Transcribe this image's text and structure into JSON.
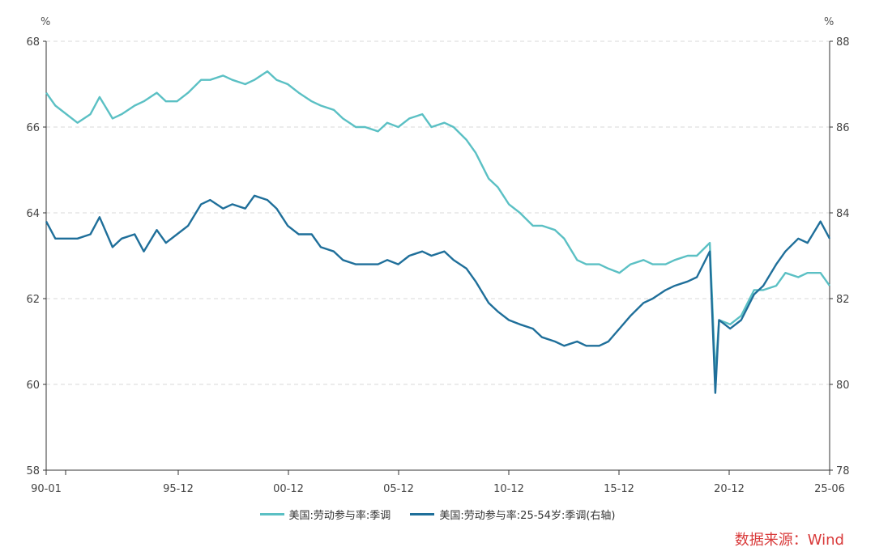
{
  "chart_data": {
    "type": "line",
    "left_axis": {
      "unit": "%",
      "ylim": [
        58,
        68
      ],
      "ticks": [
        "58",
        "60",
        "62",
        "64",
        "66",
        "68"
      ]
    },
    "right_axis": {
      "unit": "%",
      "ylim": [
        78,
        88
      ],
      "ticks": [
        "78",
        "80",
        "82",
        "84",
        "86",
        "88"
      ]
    },
    "x_ticks": [
      "90-01",
      "95-12",
      "00-12",
      "05-12",
      "10-12",
      "15-12",
      "20-12",
      "25-06"
    ],
    "grid": true,
    "legend_position": "bottom",
    "series": [
      {
        "name": "美国:劳动参与率:季调",
        "axis": "left",
        "color": "#5bc0c4",
        "x": [
          "1990-01",
          "1990-06",
          "1991-06",
          "1992-01",
          "1992-06",
          "1993-01",
          "1993-06",
          "1994-01",
          "1994-06",
          "1995-01",
          "1995-06",
          "1995-12",
          "1996-06",
          "1997-01",
          "1997-06",
          "1998-01",
          "1998-06",
          "1999-01",
          "1999-06",
          "2000-01",
          "2000-06",
          "2000-12",
          "2001-06",
          "2002-01",
          "2002-06",
          "2003-01",
          "2003-06",
          "2004-01",
          "2004-06",
          "2005-01",
          "2005-06",
          "2005-12",
          "2006-06",
          "2007-01",
          "2007-06",
          "2008-01",
          "2008-06",
          "2009-01",
          "2009-06",
          "2010-01",
          "2010-06",
          "2010-12",
          "2011-06",
          "2012-01",
          "2012-06",
          "2013-01",
          "2013-06",
          "2014-01",
          "2014-06",
          "2015-01",
          "2015-06",
          "2015-12",
          "2016-06",
          "2017-01",
          "2017-06",
          "2018-01",
          "2018-06",
          "2019-01",
          "2019-06",
          "2020-01",
          "2020-04",
          "2020-06",
          "2020-12",
          "2021-06",
          "2022-01",
          "2022-06",
          "2023-01",
          "2023-06",
          "2024-01",
          "2024-06",
          "2025-01",
          "2025-06"
        ],
        "values": [
          66.8,
          66.5,
          66.1,
          66.3,
          66.7,
          66.2,
          66.3,
          66.5,
          66.6,
          66.8,
          66.6,
          66.6,
          66.8,
          67.1,
          67.1,
          67.2,
          67.1,
          67.0,
          67.1,
          67.3,
          67.1,
          67.0,
          66.8,
          66.6,
          66.5,
          66.4,
          66.2,
          66.0,
          66.0,
          65.9,
          66.1,
          66.0,
          66.2,
          66.3,
          66.0,
          66.1,
          66.0,
          65.7,
          65.4,
          64.8,
          64.6,
          64.2,
          64.0,
          63.7,
          63.7,
          63.6,
          63.4,
          62.9,
          62.8,
          62.8,
          62.7,
          62.6,
          62.8,
          62.9,
          62.8,
          62.8,
          62.9,
          63.0,
          63.0,
          63.3,
          60.2,
          61.5,
          61.4,
          61.6,
          62.2,
          62.2,
          62.3,
          62.6,
          62.5,
          62.6,
          62.6,
          62.3
        ]
      },
      {
        "name": "美国:劳动参与率:25-54岁:季调(右轴)",
        "axis": "right",
        "color": "#1f6f9a",
        "x": [
          "1990-01",
          "1990-06",
          "1991-06",
          "1992-01",
          "1992-06",
          "1993-01",
          "1993-06",
          "1994-01",
          "1994-06",
          "1995-01",
          "1995-06",
          "1995-12",
          "1996-06",
          "1997-01",
          "1997-06",
          "1998-01",
          "1998-06",
          "1999-01",
          "1999-06",
          "2000-01",
          "2000-06",
          "2000-12",
          "2001-06",
          "2002-01",
          "2002-06",
          "2003-01",
          "2003-06",
          "2004-01",
          "2004-06",
          "2005-01",
          "2005-06",
          "2005-12",
          "2006-06",
          "2007-01",
          "2007-06",
          "2008-01",
          "2008-06",
          "2009-01",
          "2009-06",
          "2010-01",
          "2010-06",
          "2010-12",
          "2011-06",
          "2012-01",
          "2012-06",
          "2013-01",
          "2013-06",
          "2014-01",
          "2014-06",
          "2015-01",
          "2015-06",
          "2015-12",
          "2016-06",
          "2017-01",
          "2017-06",
          "2018-01",
          "2018-06",
          "2019-01",
          "2019-06",
          "2020-01",
          "2020-04",
          "2020-06",
          "2020-12",
          "2021-06",
          "2022-01",
          "2022-06",
          "2023-01",
          "2023-06",
          "2024-01",
          "2024-06",
          "2025-01",
          "2025-06"
        ],
        "values": [
          83.8,
          83.4,
          83.4,
          83.5,
          83.9,
          83.2,
          83.4,
          83.5,
          83.1,
          83.6,
          83.3,
          83.5,
          83.7,
          84.2,
          84.3,
          84.1,
          84.2,
          84.1,
          84.4,
          84.3,
          84.1,
          83.7,
          83.5,
          83.5,
          83.2,
          83.1,
          82.9,
          82.8,
          82.8,
          82.8,
          82.9,
          82.8,
          83.0,
          83.1,
          83.0,
          83.1,
          82.9,
          82.7,
          82.4,
          81.9,
          81.7,
          81.5,
          81.4,
          81.3,
          81.1,
          81.0,
          80.9,
          81.0,
          80.9,
          80.9,
          81.0,
          81.3,
          81.6,
          81.9,
          82.0,
          82.2,
          82.3,
          82.4,
          82.5,
          83.1,
          79.8,
          81.5,
          81.3,
          81.5,
          82.1,
          82.3,
          82.8,
          83.1,
          83.4,
          83.3,
          83.8,
          83.4
        ]
      }
    ]
  },
  "source_text": "数据来源：Wind"
}
